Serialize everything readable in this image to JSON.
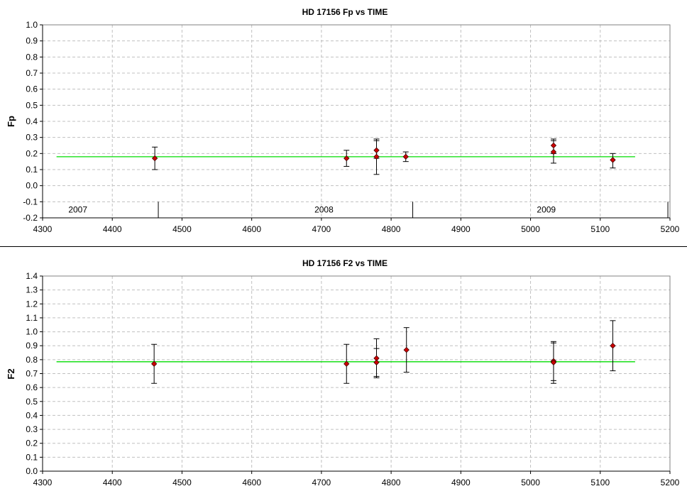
{
  "colors": {
    "background": "#ffffff",
    "grid": "#c0c0c0",
    "fit_line": "#00dd00",
    "marker_fill": "#cc0000",
    "marker_stroke": "#400000",
    "error_bar": "#000000",
    "separator": "#000000"
  },
  "chart_data": [
    {
      "type": "scatter",
      "title": "HD 17156 Fp vs TIME",
      "xlabel": "",
      "ylabel": "Fp",
      "xlim": [
        4300,
        5200
      ],
      "ylim": [
        -0.2,
        1.0
      ],
      "xticks": [
        4300,
        4400,
        4500,
        4600,
        4700,
        4800,
        4900,
        5000,
        5100,
        5200
      ],
      "yticks": [
        -0.2,
        -0.1,
        0.0,
        0.1,
        0.2,
        0.3,
        0.4,
        0.5,
        0.6,
        0.7,
        0.8,
        0.9,
        1.0
      ],
      "grid": true,
      "fit_line": {
        "x": [
          4320,
          5150
        ],
        "y": 0.18
      },
      "points": [
        {
          "x": 4461,
          "y": 0.17,
          "err_low": 0.1,
          "err_high": 0.24
        },
        {
          "x": 4736,
          "y": 0.17,
          "err_low": 0.12,
          "err_high": 0.22
        },
        {
          "x": 4779,
          "y": 0.22,
          "err_low": 0.17,
          "err_high": 0.29
        },
        {
          "x": 4779,
          "y": 0.18,
          "err_low": 0.07,
          "err_high": 0.28
        },
        {
          "x": 4821,
          "y": 0.18,
          "err_low": 0.15,
          "err_high": 0.21
        },
        {
          "x": 5033,
          "y": 0.25,
          "err_low": 0.2,
          "err_high": 0.29
        },
        {
          "x": 5033,
          "y": 0.21,
          "err_low": 0.14,
          "err_high": 0.28
        },
        {
          "x": 5118,
          "y": 0.16,
          "err_low": 0.11,
          "err_high": 0.2
        }
      ],
      "year_markers": {
        "labels": [
          {
            "text": "2007",
            "x": 4337
          },
          {
            "text": "2008",
            "x": 4690
          },
          {
            "text": "2009",
            "x": 5009
          }
        ],
        "dividers": [
          4466,
          4831,
          5197
        ]
      }
    },
    {
      "type": "scatter",
      "title": "HD 17156 F2 vs TIME",
      "xlabel": "",
      "ylabel": "F2",
      "xlim": [
        4300,
        5200
      ],
      "ylim": [
        0.0,
        1.4
      ],
      "xticks": [
        4300,
        4400,
        4500,
        4600,
        4700,
        4800,
        4900,
        5000,
        5100,
        5200
      ],
      "yticks": [
        0.0,
        0.1,
        0.2,
        0.3,
        0.4,
        0.5,
        0.6,
        0.7,
        0.8,
        0.9,
        1.0,
        1.1,
        1.2,
        1.3,
        1.4
      ],
      "grid": true,
      "fit_line": {
        "x": [
          4320,
          5150
        ],
        "y": 0.785
      },
      "points": [
        {
          "x": 4460,
          "y": 0.77,
          "err_low": 0.63,
          "err_high": 0.91
        },
        {
          "x": 4736,
          "y": 0.77,
          "err_low": 0.63,
          "err_high": 0.91
        },
        {
          "x": 4779,
          "y": 0.81,
          "err_low": 0.68,
          "err_high": 0.95
        },
        {
          "x": 4779,
          "y": 0.78,
          "err_low": 0.67,
          "err_high": 0.88
        },
        {
          "x": 4822,
          "y": 0.87,
          "err_low": 0.71,
          "err_high": 1.03
        },
        {
          "x": 5033,
          "y": 0.79,
          "err_low": 0.65,
          "err_high": 0.93
        },
        {
          "x": 5033,
          "y": 0.78,
          "err_low": 0.63,
          "err_high": 0.92
        },
        {
          "x": 5118,
          "y": 0.9,
          "err_low": 0.72,
          "err_high": 1.08
        }
      ]
    }
  ]
}
